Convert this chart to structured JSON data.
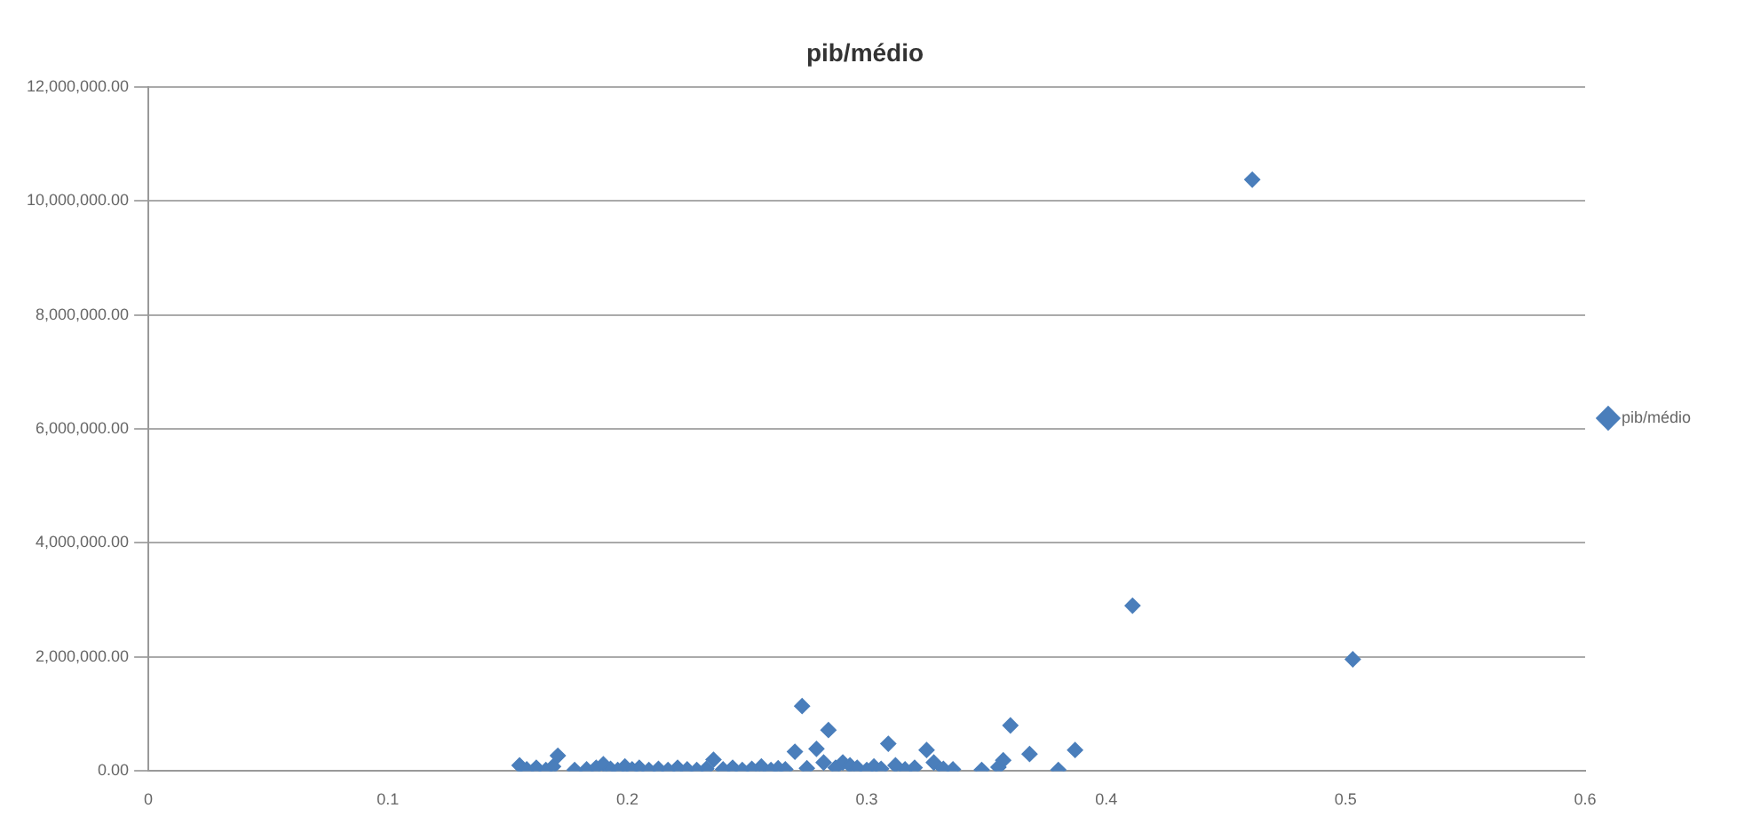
{
  "chart_data": {
    "type": "scatter",
    "title": "pib/médio",
    "marker": "diamond",
    "grid": "y",
    "legend": "right",
    "xlim": [
      0,
      0.6
    ],
    "xticks": [
      0,
      0.1,
      0.2,
      0.3,
      0.4,
      0.5,
      0.6
    ],
    "ylim": [
      0,
      12000000
    ],
    "yticks": [
      {
        "value": 0,
        "label": "0.00"
      },
      {
        "value": 2000000,
        "label": "2,000,000.00"
      },
      {
        "value": 4000000,
        "label": "4,000,000.00"
      },
      {
        "value": 6000000,
        "label": "6,000,000.00"
      },
      {
        "value": 8000000,
        "label": "8,000,000.00"
      },
      {
        "value": 10000000,
        "label": "10,000,000.00"
      },
      {
        "value": 12000000,
        "label": "12,000,000.00"
      }
    ],
    "series": [
      {
        "name": "pib/médio",
        "color": "#4a7ebb",
        "x": [
          0.155,
          0.158,
          0.162,
          0.166,
          0.169,
          0.171,
          0.178,
          0.183,
          0.187,
          0.19,
          0.193,
          0.196,
          0.199,
          0.202,
          0.205,
          0.209,
          0.213,
          0.217,
          0.221,
          0.225,
          0.229,
          0.233,
          0.236,
          0.24,
          0.244,
          0.248,
          0.252,
          0.256,
          0.26,
          0.263,
          0.266,
          0.27,
          0.273,
          0.275,
          0.279,
          0.282,
          0.284,
          0.287,
          0.29,
          0.293,
          0.296,
          0.3,
          0.303,
          0.306,
          0.309,
          0.312,
          0.316,
          0.32,
          0.325,
          0.328,
          0.332,
          0.336,
          0.348,
          0.355,
          0.357,
          0.36,
          0.368,
          0.38,
          0.387,
          0.411,
          0.461,
          0.503
        ],
        "values": [
          100000,
          30000,
          60000,
          20000,
          80000,
          270000,
          20000,
          30000,
          60000,
          120000,
          40000,
          20000,
          80000,
          30000,
          60000,
          20000,
          40000,
          20000,
          60000,
          30000,
          20000,
          40000,
          200000,
          30000,
          60000,
          20000,
          40000,
          80000,
          20000,
          50000,
          30000,
          340000,
          1140000,
          50000,
          390000,
          150000,
          720000,
          60000,
          150000,
          100000,
          60000,
          20000,
          80000,
          40000,
          480000,
          100000,
          30000,
          60000,
          370000,
          150000,
          40000,
          30000,
          20000,
          70000,
          190000,
          800000,
          300000,
          20000,
          370000,
          2900000,
          10370000,
          1960000
        ]
      }
    ]
  }
}
